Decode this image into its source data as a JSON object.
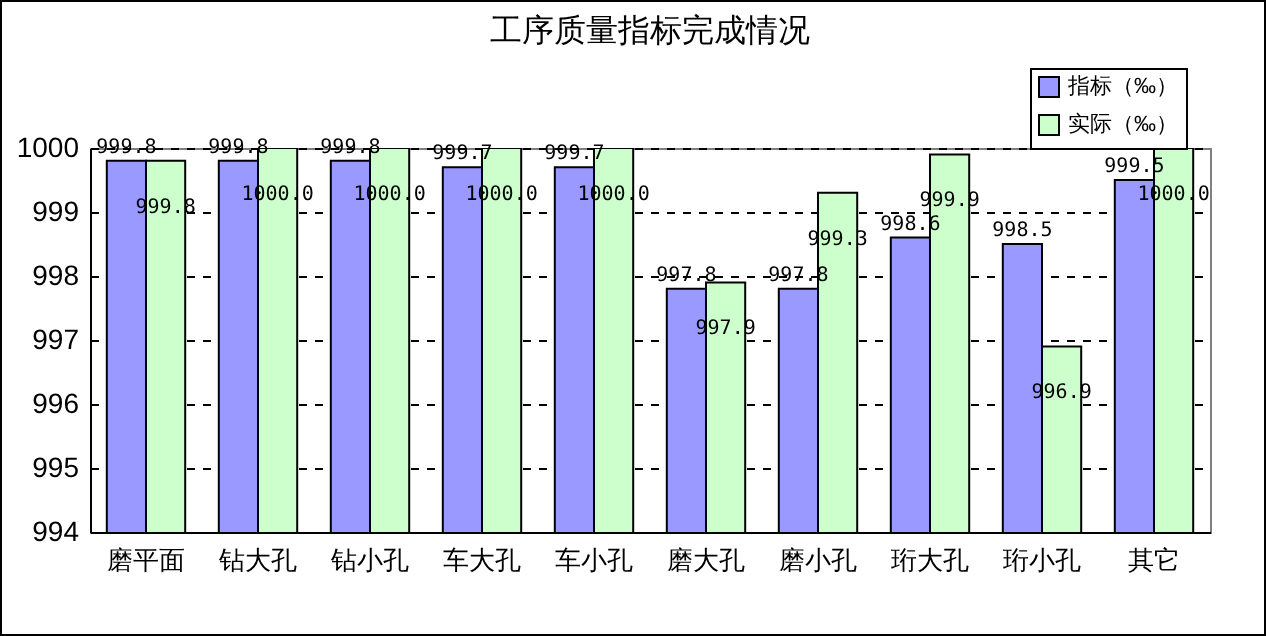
{
  "chart_data": {
    "type": "bar",
    "title": "工序质量指标完成情况",
    "categories": [
      "磨平面",
      "钻大孔",
      "钻小孔",
      "车大孔",
      "车小孔",
      "磨大孔",
      "磨小孔",
      "珩大孔",
      "珩小孔",
      "其它"
    ],
    "series": [
      {
        "name": "指标（‰）",
        "color": "#9999ff",
        "values": [
          999.8,
          999.8,
          999.8,
          999.7,
          999.7,
          997.8,
          997.8,
          998.6,
          998.5,
          999.5
        ],
        "value_labels": [
          "999.8",
          "999.8",
          "999.8",
          "999.7",
          "999.7",
          "997.8",
          "997.8",
          "998.6",
          "998.5",
          "999.5"
        ]
      },
      {
        "name": "实际（‰）",
        "color": "#ccffcc",
        "values": [
          999.8,
          1000.0,
          1000.0,
          1000.0,
          1000.0,
          997.9,
          999.3,
          999.9,
          996.9,
          1000.0
        ],
        "value_labels": [
          "999.8",
          "1000.0",
          "1000.0",
          "1000.0",
          "1000.0",
          "997.9",
          "999.3",
          "999.9",
          "996.9",
          "1000.0"
        ]
      }
    ],
    "ylim": [
      994,
      1000
    ],
    "yticks": [
      994,
      995,
      996,
      997,
      998,
      999,
      1000
    ],
    "grid": "y",
    "legend": "top right"
  }
}
